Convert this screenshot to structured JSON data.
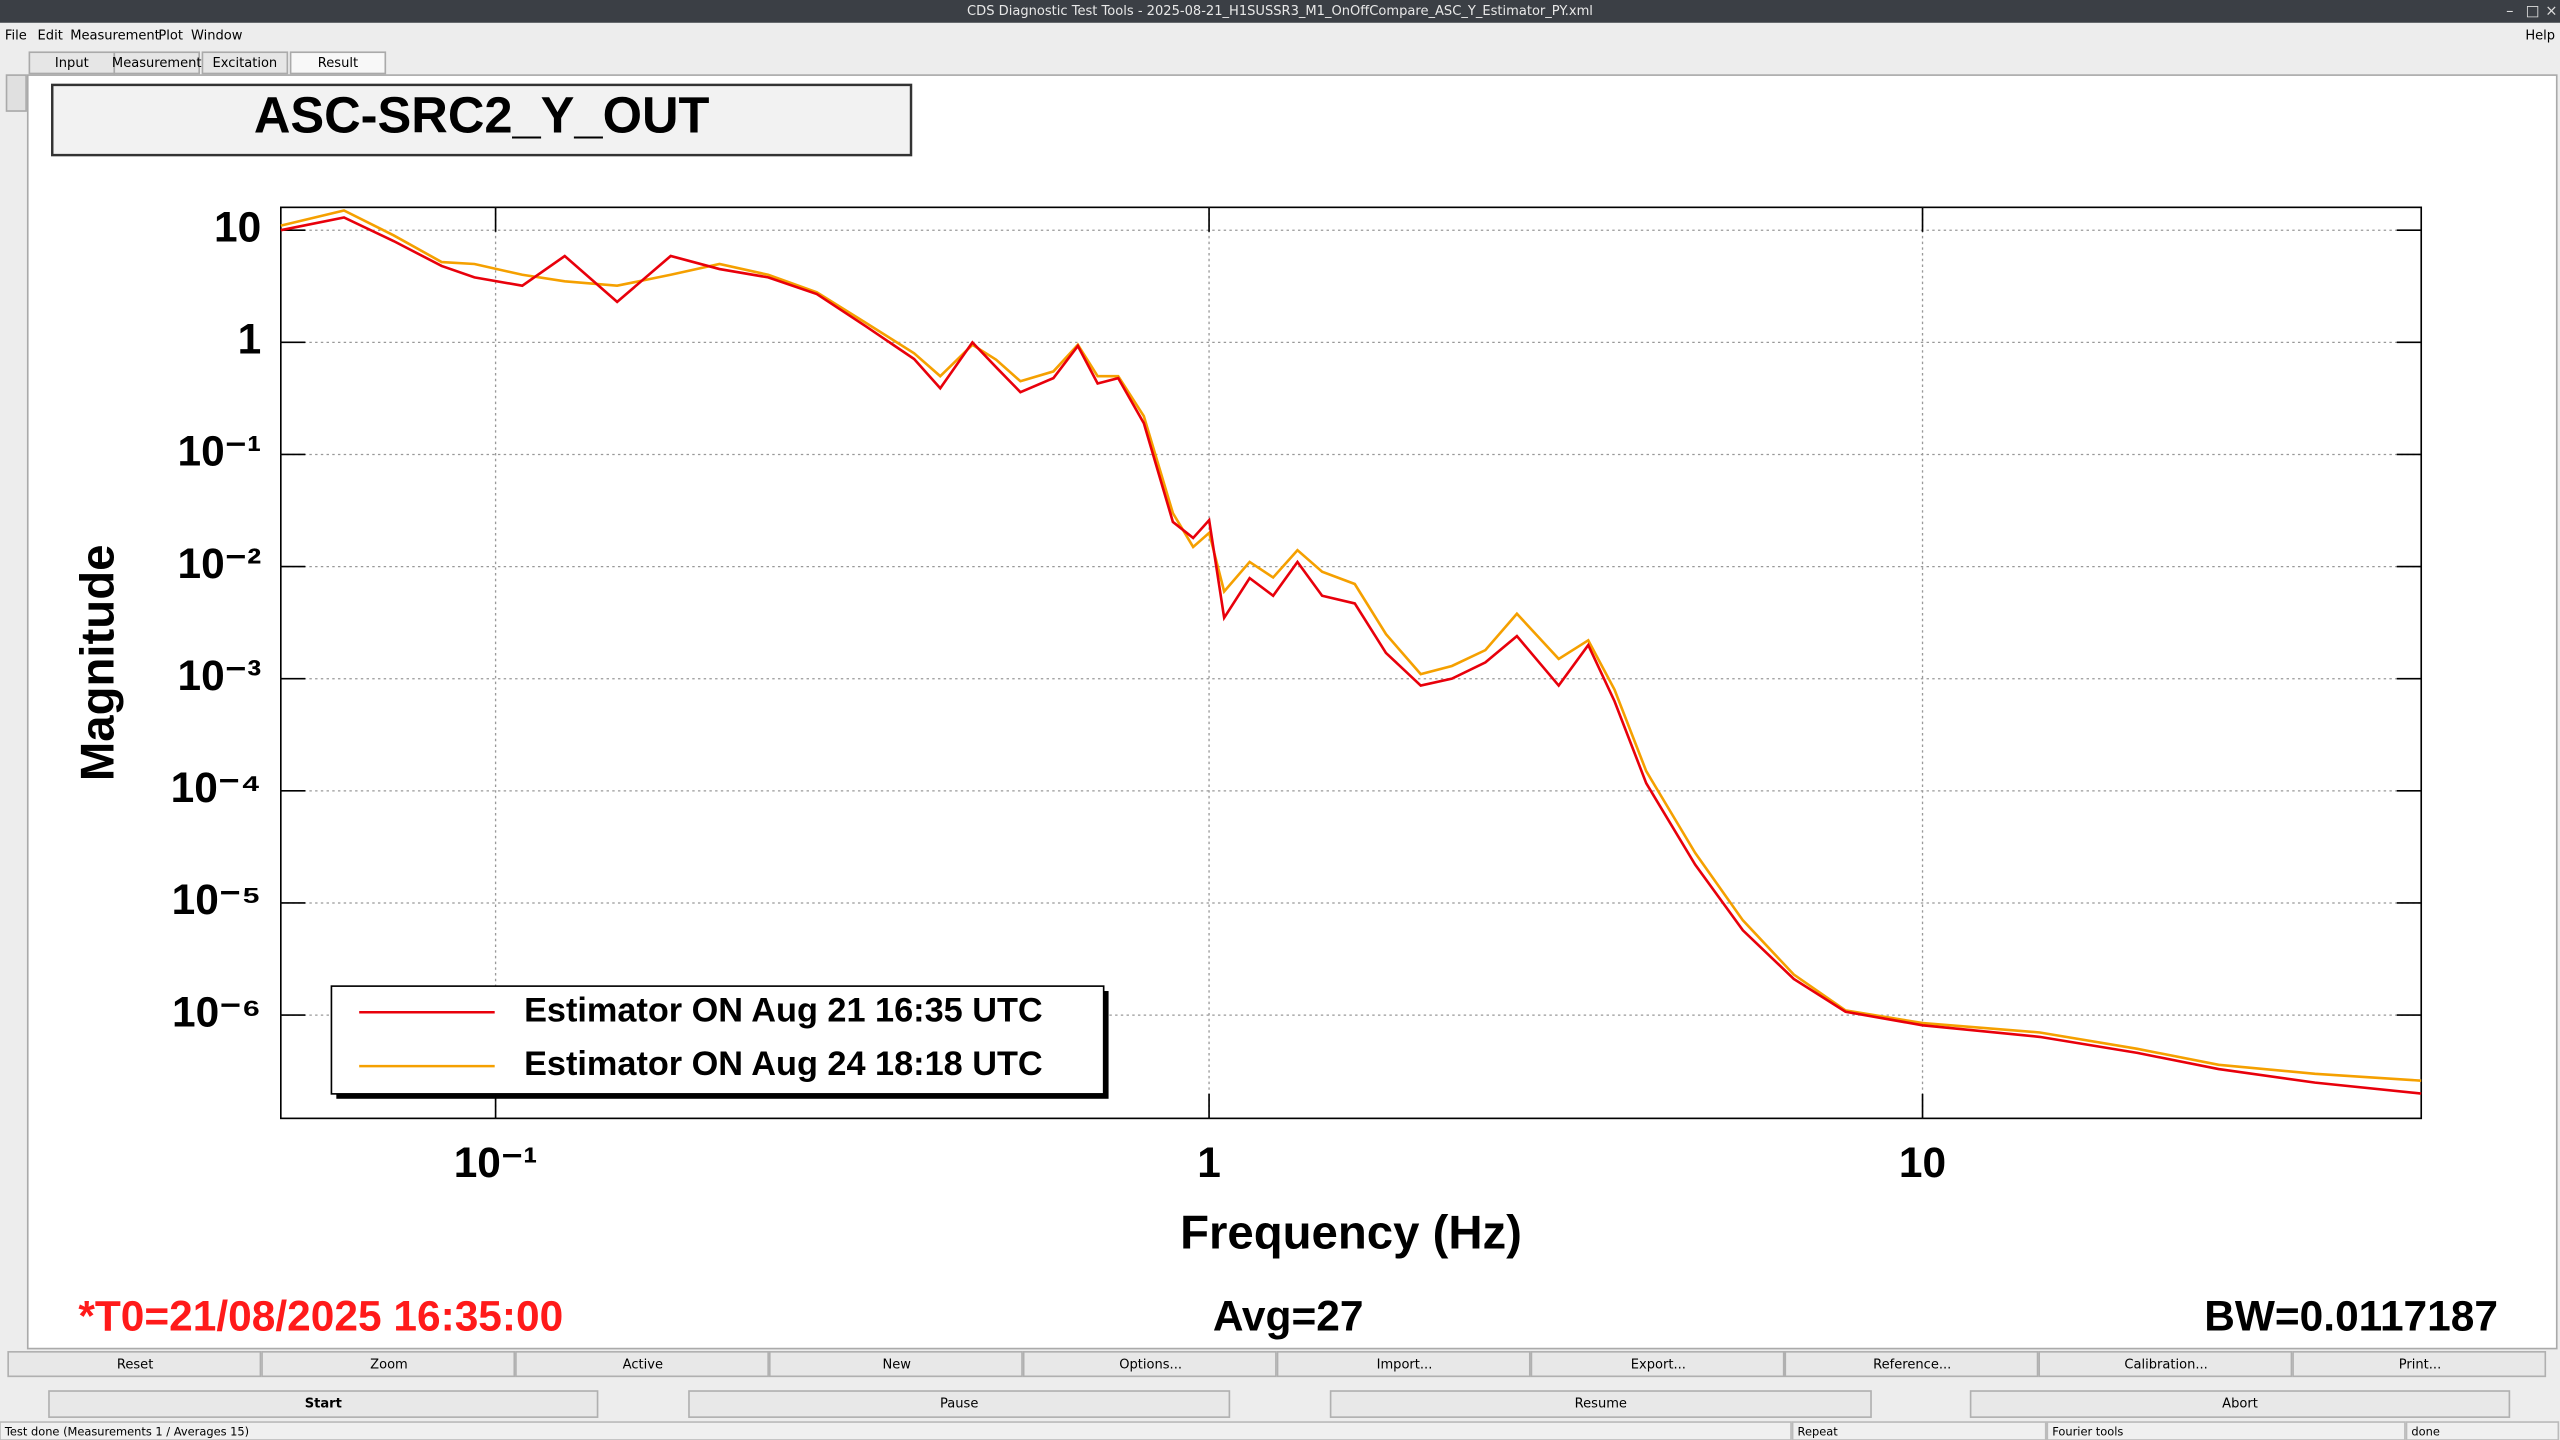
{
  "window": {
    "title": "CDS Diagnostic Test Tools - 2025-08-21_H1SUSSR3_M1_OnOffCompare_ASC_Y_Estimator_PY.xml"
  },
  "menu": [
    "File",
    "Edit",
    "Measurement",
    "Plot",
    "Window",
    "Help"
  ],
  "tabs": [
    "Input",
    "Measurement",
    "Excitation",
    "Result"
  ],
  "plot_title": "ASC-SRC2_Y_OUT",
  "chart_data": {
    "type": "line",
    "xlabel": "Frequency (Hz)",
    "ylabel": "Magnitude",
    "xscale": "log",
    "yscale": "log",
    "grid": true,
    "legend": "lower left",
    "xlim": [
      0.05,
      50
    ],
    "ylim": [
      1.2e-07,
      16
    ],
    "xticks": [
      {
        "value": 0.1,
        "label": "10⁻¹"
      },
      1,
      10
    ],
    "yticks": [
      {
        "value": 1e-06,
        "label": "10⁻⁶"
      },
      {
        "value": 1e-05,
        "label": "10⁻⁵"
      },
      {
        "value": 0.0001,
        "label": "10⁻⁴"
      },
      {
        "value": 0.001,
        "label": "10⁻³"
      },
      {
        "value": 0.01,
        "label": "10⁻²"
      },
      {
        "value": 0.1,
        "label": "10⁻¹"
      },
      1,
      10
    ],
    "x": [
      0.05,
      0.0613,
      0.072,
      0.084,
      0.0934,
      0.109,
      0.125,
      0.148,
      0.176,
      0.206,
      0.241,
      0.282,
      0.33,
      0.386,
      0.42,
      0.466,
      0.503,
      0.544,
      0.605,
      0.655,
      0.698,
      0.746,
      0.81,
      0.89,
      0.95,
      1.0,
      1.05,
      1.14,
      1.23,
      1.33,
      1.44,
      1.6,
      1.77,
      1.98,
      2.19,
      2.44,
      2.7,
      3.09,
      3.4,
      3.7,
      4.1,
      4.8,
      5.6,
      6.6,
      7.8,
      10,
      14.6,
      20,
      26,
      35.5,
      50
    ],
    "series": [
      {
        "name": "Estimator ON Aug 21 16:35 UTC",
        "color": "#e8000b",
        "values": [
          10,
          13,
          8,
          4.8,
          3.8,
          3.2,
          5.9,
          2.3,
          5.9,
          4.5,
          3.8,
          2.7,
          1.4,
          0.71,
          0.39,
          1.0,
          0.6,
          0.36,
          0.48,
          0.93,
          0.43,
          0.48,
          0.19,
          0.025,
          0.018,
          0.026,
          0.0035,
          0.0079,
          0.0055,
          0.011,
          0.0055,
          0.0047,
          0.0017,
          0.00087,
          0.001,
          0.0014,
          0.0024,
          0.00087,
          0.002,
          0.00063,
          0.000117,
          2.2e-05,
          5.7e-06,
          2.1e-06,
          1.07e-06,
          8.1e-07,
          6.4e-07,
          4.6e-07,
          3.3e-07,
          2.5e-07,
          2e-07
        ]
      },
      {
        "name": "Estimator ON Aug 24 18:18 UTC",
        "color": "#f5a000",
        "values": [
          11,
          15,
          9,
          5.2,
          5,
          4,
          3.5,
          3.2,
          4,
          5,
          4,
          2.8,
          1.5,
          0.8,
          0.5,
          0.95,
          0.7,
          0.45,
          0.55,
          0.95,
          0.5,
          0.5,
          0.22,
          0.03,
          0.015,
          0.02,
          0.006,
          0.011,
          0.008,
          0.014,
          0.009,
          0.007,
          0.0025,
          0.0011,
          0.0013,
          0.0018,
          0.0038,
          0.0015,
          0.0022,
          0.0008,
          0.00015,
          2.8e-05,
          7e-06,
          2.3e-06,
          1.1e-06,
          8.5e-07,
          7e-07,
          5e-07,
          3.6e-07,
          3e-07,
          2.6e-07
        ]
      }
    ]
  },
  "info": {
    "t0": "*T0=21/08/2025 16:35:00",
    "avg": "Avg=27",
    "bw": "BW=0.0117187"
  },
  "buttons": [
    "Reset",
    "Zoom",
    "Active",
    "New",
    "Options...",
    "Import...",
    "Export...",
    "Reference...",
    "Calibration...",
    "Print..."
  ],
  "controls": [
    "Start",
    "Pause",
    "Resume",
    "Abort"
  ],
  "status": [
    "Test done (Measurements 1 / Averages 15)",
    "Repeat",
    "Fourier tools",
    "done"
  ]
}
